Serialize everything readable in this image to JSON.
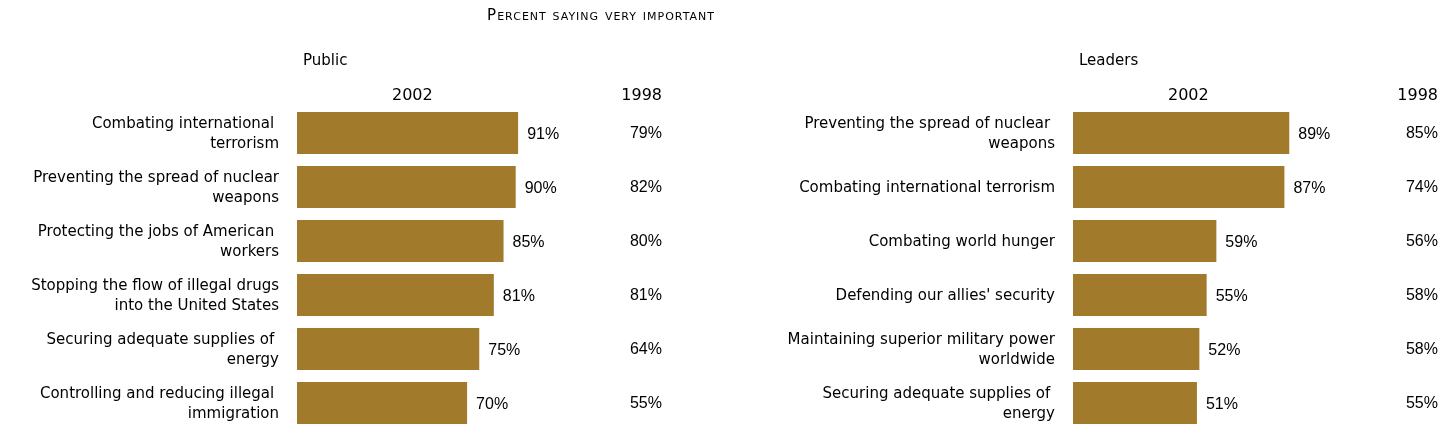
{
  "chart_data": [
    {
      "type": "bar",
      "orientation": "horizontal",
      "title": "Percent saying very important",
      "subtitle": "Public",
      "xlabel": "2002",
      "tick_labels": false,
      "categories": [
        "Combating international terrorism",
        "Preventing the spread of nuclear weapons",
        "Protecting the jobs of American workers",
        "Stopping the flow of illegal drugs into the United States",
        "Securing adequate supplies of energy",
        "Controlling and reducing illegal immigration"
      ],
      "series": [
        {
          "color": "#a17a2b",
          "values": [
            91,
            90,
            85,
            81,
            75,
            70
          ],
          "value_labels": [
            "91%",
            "90%",
            "85%",
            "81%",
            "75%",
            "70%"
          ]
        }
      ],
      "annotations": [
        "1998",
        "79%",
        "82%",
        "80%",
        "81%",
        "64%",
        "55%"
      ]
    },
    {
      "type": "bar",
      "orientation": "horizontal",
      "subtitle": "Leaders",
      "xlabel": "2002",
      "tick_labels": false,
      "categories": [
        "Preventing the spread of nuclear weapons",
        "Combating international terrorism",
        "Combating world hunger",
        "Defending our allies' security",
        "Maintaining superior military power worldwide",
        "Securing adequate supplies of energy"
      ],
      "series": [
        {
          "color": "#a17a2b",
          "values": [
            89,
            87,
            59,
            55,
            52,
            51
          ],
          "value_labels": [
            "89%",
            "87%",
            "59%",
            "55%",
            "52%",
            "51%"
          ]
        }
      ],
      "annotations": [
        "1998",
        "85%",
        "74%",
        "56%",
        "58%",
        "58%",
        "55%"
      ]
    }
  ]
}
